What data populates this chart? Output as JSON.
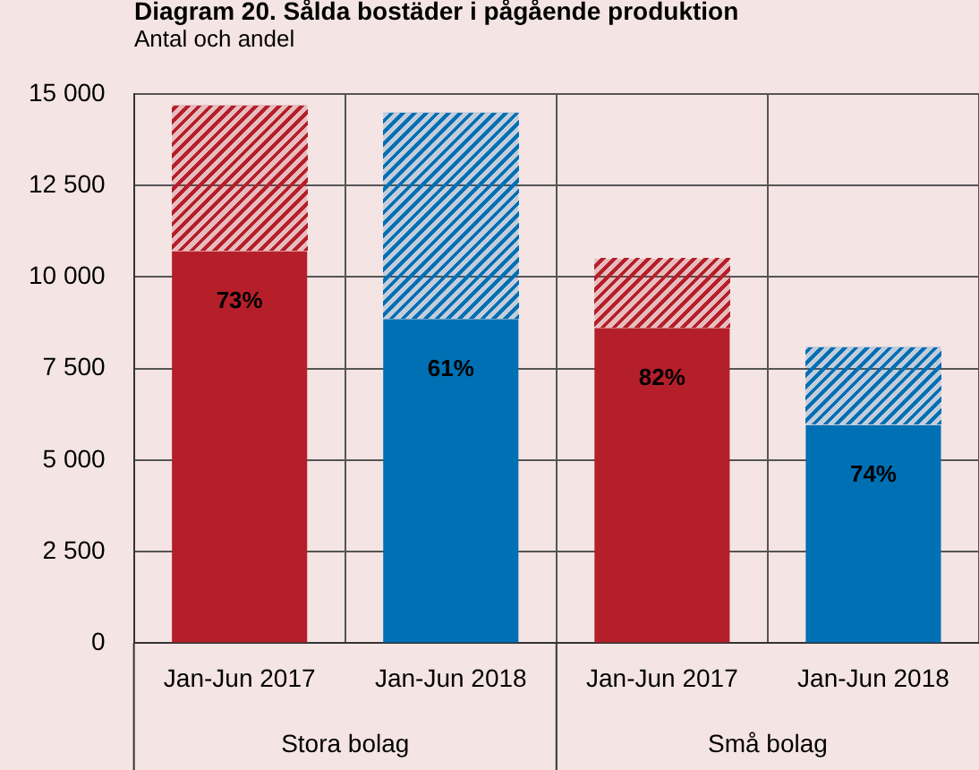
{
  "chart_data": {
    "type": "bar",
    "title": "Diagram 20. Sålda bostäder i pågående produktion",
    "subtitle": "Antal och andel",
    "categories": [
      "Jan-Jun 2017",
      "Jan-Jun 2018",
      "Jan-Jun 2017",
      "Jan-Jun 2018"
    ],
    "annotations": [
      "Stora bolag",
      "Små bolag",
      {
        "text": "73%",
        "y": 10700
      },
      {
        "text": "61%",
        "y": 8850
      },
      {
        "text": "82%",
        "y": 8600
      },
      {
        "text": "74%",
        "y": 5950
      }
    ],
    "stacked": true,
    "series": [
      {
        "colors": [
          "#b51f2a",
          "#0070b4",
          "#b51f2a",
          "#0070b4"
        ],
        "values": [
          10700,
          8850,
          8600,
          5950
        ]
      },
      {
        "colors": [
          "#b51f2a",
          "#0070b4",
          "#b51f2a",
          "#0070b4"
        ],
        "values": [
          4000,
          5650,
          1900,
          2150
        ]
      }
    ],
    "ylim": [
      0,
      15000
    ],
    "yticks": [
      0,
      {
        "value": 2500,
        "label": "2 500"
      },
      {
        "value": 5000,
        "label": "5 000"
      },
      {
        "value": 7500,
        "label": "7 500"
      },
      {
        "value": 10000,
        "label": "10 000"
      },
      {
        "value": 12500,
        "label": "12 500"
      },
      {
        "value": 15000,
        "label": "15 000"
      }
    ],
    "grid": true,
    "legend": false
  }
}
